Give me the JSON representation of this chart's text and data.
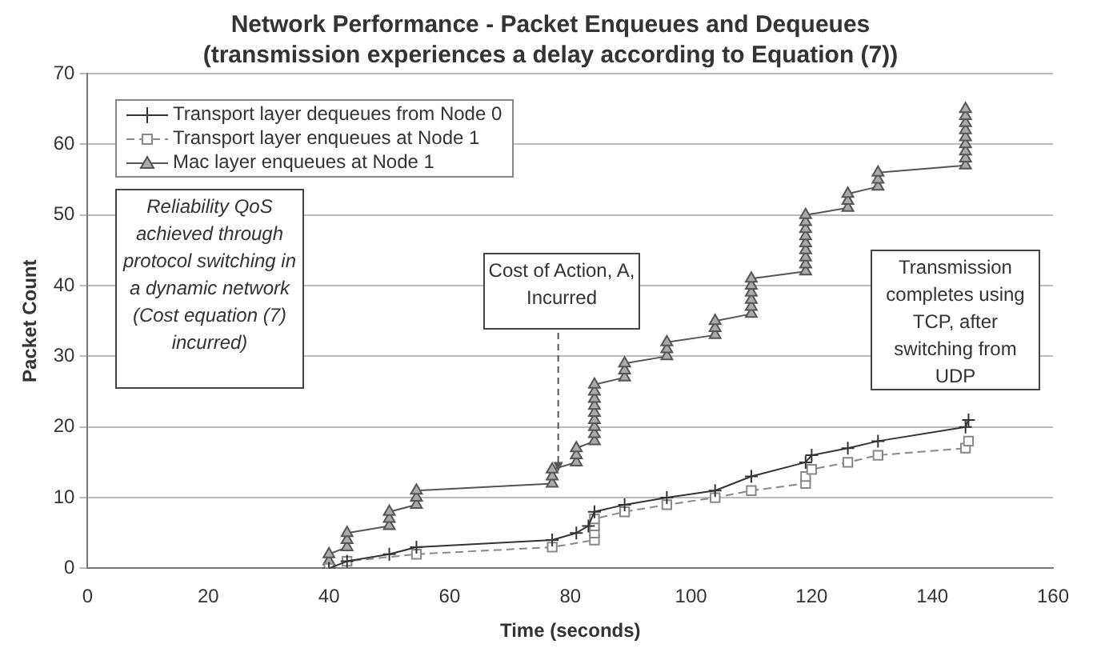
{
  "chart_data": {
    "type": "line",
    "title": "Network Performance - Packet Enqueues and Dequeues",
    "subtitle": "(transmission experiences a delay according to Equation (7))",
    "xlabel": "Time (seconds)",
    "ylabel": "Packet Count",
    "xlim": [
      0,
      160
    ],
    "xticks": [
      0,
      20,
      40,
      60,
      80,
      100,
      120,
      140,
      160
    ],
    "ylim": [
      0,
      70
    ],
    "yticks": [
      0,
      10,
      20,
      30,
      40,
      50,
      60,
      70
    ],
    "grid": "y",
    "legend": "top left",
    "series": [
      {
        "name": "Transport layer dequeues from Node 0",
        "color": "#333333",
        "marker": "cross",
        "x": [
          40,
          43,
          50,
          54.5,
          77,
          81,
          83,
          84,
          89,
          96,
          104,
          110,
          119,
          120,
          126,
          131,
          145.5,
          146
        ],
        "values": [
          0,
          1,
          2,
          3,
          4,
          5,
          6,
          8,
          9,
          10,
          11,
          13,
          15,
          16,
          17,
          18,
          20,
          21
        ]
      },
      {
        "name": "Transport layer enqueues at Node 1",
        "color": "#888888",
        "marker": "square",
        "line_style": "dashed",
        "x": [
          40,
          43,
          54.5,
          77,
          84,
          84,
          84,
          84,
          89,
          96,
          104,
          110,
          119,
          119,
          120,
          126,
          131,
          145.5,
          146
        ],
        "values": [
          0,
          1,
          2,
          3,
          4,
          5,
          6,
          7,
          8,
          9,
          10,
          11,
          12,
          13,
          14,
          15,
          16,
          17,
          18
        ]
      },
      {
        "name": "Mac layer enqueues at Node 1",
        "color": "#555555",
        "marker": "triangle",
        "x": [
          40,
          40,
          40,
          43,
          43,
          43,
          50,
          50,
          50,
          54.5,
          54.5,
          54.5,
          77,
          77,
          77,
          81,
          81,
          81,
          84,
          84,
          84,
          84,
          84,
          84,
          84,
          84,
          84,
          89,
          89,
          89,
          96,
          96,
          96,
          104,
          104,
          104,
          110,
          110,
          110,
          110,
          110,
          110,
          119,
          119,
          119,
          119,
          119,
          119,
          119,
          119,
          119,
          126,
          126,
          126,
          131,
          131,
          131,
          145.5,
          145.5,
          145.5,
          145.5,
          145.5,
          145.5,
          145.5,
          145.5,
          145.5
        ],
        "values": [
          0,
          1,
          2,
          3,
          4,
          5,
          6,
          7,
          8,
          9,
          10,
          11,
          12,
          13,
          14,
          15,
          16,
          17,
          18,
          19,
          20,
          21,
          22,
          23,
          24,
          25,
          26,
          27,
          28,
          29,
          30,
          31,
          32,
          33,
          34,
          35,
          36,
          37,
          38,
          39,
          40,
          41,
          42,
          43,
          44,
          45,
          46,
          47,
          48,
          49,
          50,
          51,
          52,
          53,
          54,
          55,
          56,
          57,
          58,
          59,
          60,
          61,
          62,
          63,
          64,
          65
        ]
      }
    ],
    "annotations": [
      "Reliability QoS achieved through protocol switching in a dynamic network (Cost equation (7) incurred)",
      {
        "text": "Cost of Action, A, Incurred",
        "x": 78,
        "y": 13
      },
      "Transmission completes using TCP, after switching from UDP"
    ]
  }
}
